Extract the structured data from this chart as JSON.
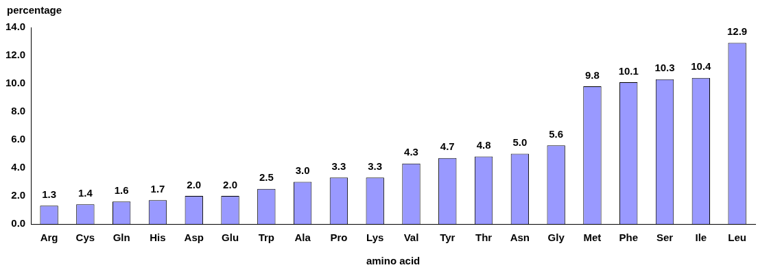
{
  "chart_data": {
    "type": "bar",
    "ylabel": "percentage",
    "xlabel": "amino acid",
    "categories": [
      "Arg",
      "Cys",
      "Gln",
      "His",
      "Asp",
      "Glu",
      "Trp",
      "Ala",
      "Pro",
      "Lys",
      "Val",
      "Tyr",
      "Thr",
      "Asn",
      "Gly",
      "Met",
      "Phe",
      "Ser",
      "Ile",
      "Leu"
    ],
    "values": [
      1.3,
      1.4,
      1.6,
      1.7,
      2.0,
      2.0,
      2.5,
      3.0,
      3.3,
      3.3,
      4.3,
      4.7,
      4.8,
      5.0,
      5.6,
      9.8,
      10.1,
      10.3,
      10.4,
      12.9
    ],
    "value_labels": [
      "1.3",
      "1.4",
      "1.6",
      "1.7",
      "2.0",
      "2.0",
      "2.5",
      "3.0",
      "3.3",
      "3.3",
      "4.3",
      "4.7",
      "4.8",
      "5.0",
      "5.6",
      "9.8",
      "10.1",
      "10.3",
      "10.4",
      "12.9"
    ],
    "color": "#9999ff",
    "ylim": [
      0,
      14
    ],
    "yticks": [
      {
        "value": 0,
        "label": "0.0"
      },
      {
        "value": 2,
        "label": "2.0"
      },
      {
        "value": 4,
        "label": "4.0"
      },
      {
        "value": 6,
        "label": "6.0"
      },
      {
        "value": 8,
        "label": "8.0"
      },
      {
        "value": 10,
        "label": "10.0"
      },
      {
        "value": 12,
        "label": "12.0"
      },
      {
        "value": 14,
        "label": "14.0"
      }
    ],
    "grid": false
  }
}
